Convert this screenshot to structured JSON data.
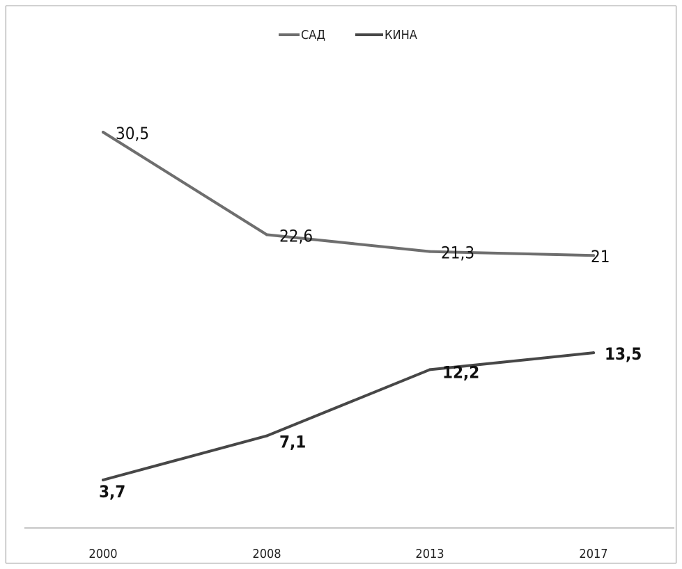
{
  "chart_data": {
    "type": "line",
    "categories": [
      "2000",
      "2008",
      "2013",
      "2017"
    ],
    "series": [
      {
        "name": "САД",
        "values": [
          30.5,
          22.6,
          21.3,
          21
        ],
        "labels": [
          "30,5",
          "22,6",
          "21,3",
          "21"
        ],
        "color": "#6e6e6e"
      },
      {
        "name": "КИНА",
        "values": [
          3.7,
          7.1,
          12.2,
          13.5
        ],
        "labels": [
          "3,7",
          "7,1",
          "12,2",
          "13,5"
        ],
        "color": "#474747"
      }
    ],
    "title": "",
    "xlabel": "",
    "ylabel": "",
    "legend_position": "top-center",
    "y_axis_visible": false,
    "grid": false,
    "ylim": [
      0,
      33
    ]
  }
}
